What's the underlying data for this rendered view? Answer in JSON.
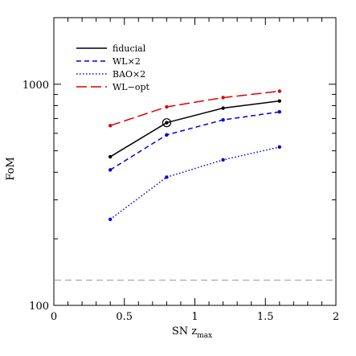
{
  "chart_data": {
    "type": "line",
    "xlabel": "SN z",
    "xlabel_sub": "max",
    "ylabel": "FoM",
    "xlim": [
      0,
      2
    ],
    "ylim": [
      100,
      2000
    ],
    "yscale": "log",
    "x_ticks": [
      "0",
      "0.5",
      "1",
      "1.5",
      "2"
    ],
    "y_ticks": [
      "100",
      "1000"
    ],
    "legend_position": "top-left",
    "x": [
      0.4,
      0.8,
      1.2,
      1.6
    ],
    "series": [
      {
        "name": "fiducial",
        "color": "#000000",
        "style": "solid",
        "values": [
          470,
          670,
          780,
          840
        ]
      },
      {
        "name": "WL×2",
        "color": "#0000dd",
        "style": "short-dash",
        "values": [
          410,
          590,
          690,
          750
        ]
      },
      {
        "name": "BAO×2",
        "color": "#0000dd",
        "style": "dotted",
        "values": [
          245,
          380,
          455,
          520
        ]
      },
      {
        "name": "WL−opt",
        "color": "#dd0000",
        "style": "long-dash",
        "values": [
          650,
          790,
          870,
          930
        ]
      }
    ],
    "highlight": {
      "series": "fiducial",
      "x": 0.8,
      "y": 670,
      "marker": "circled-point"
    },
    "reference_line": {
      "y": 130,
      "color": "#aaaaaa",
      "style": "dashed"
    }
  }
}
